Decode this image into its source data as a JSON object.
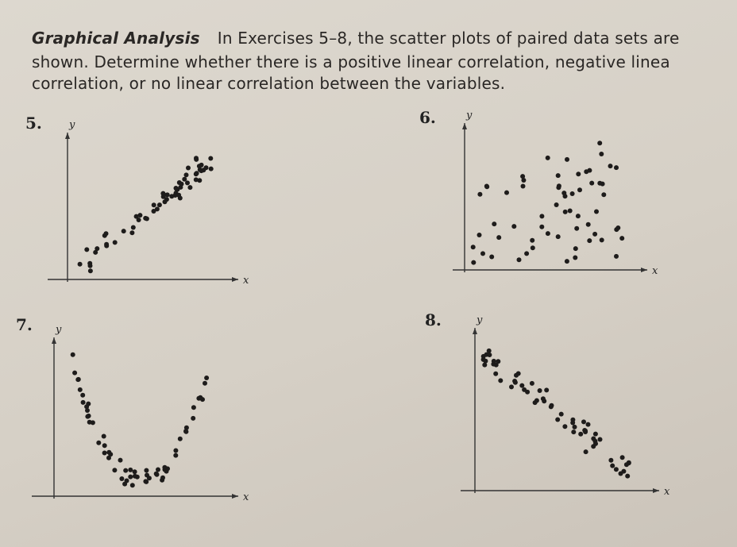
{
  "header": {
    "title": "Graphical Analysis",
    "lines": [
      "In Exercises 5–8, the scatter plots of paired data sets are",
      "shown. Determine whether there is a positive linear correlation, negative linea",
      "correlation, or no linear correlation between the variables."
    ]
  },
  "exercises": [
    {
      "number": "5.",
      "y_label": "y",
      "x_label": "x"
    },
    {
      "number": "6.",
      "y_label": "y",
      "x_label": "x"
    },
    {
      "number": "7.",
      "y_label": "y",
      "x_label": "x"
    },
    {
      "number": "8.",
      "y_label": "y",
      "x_label": "x"
    }
  ]
}
